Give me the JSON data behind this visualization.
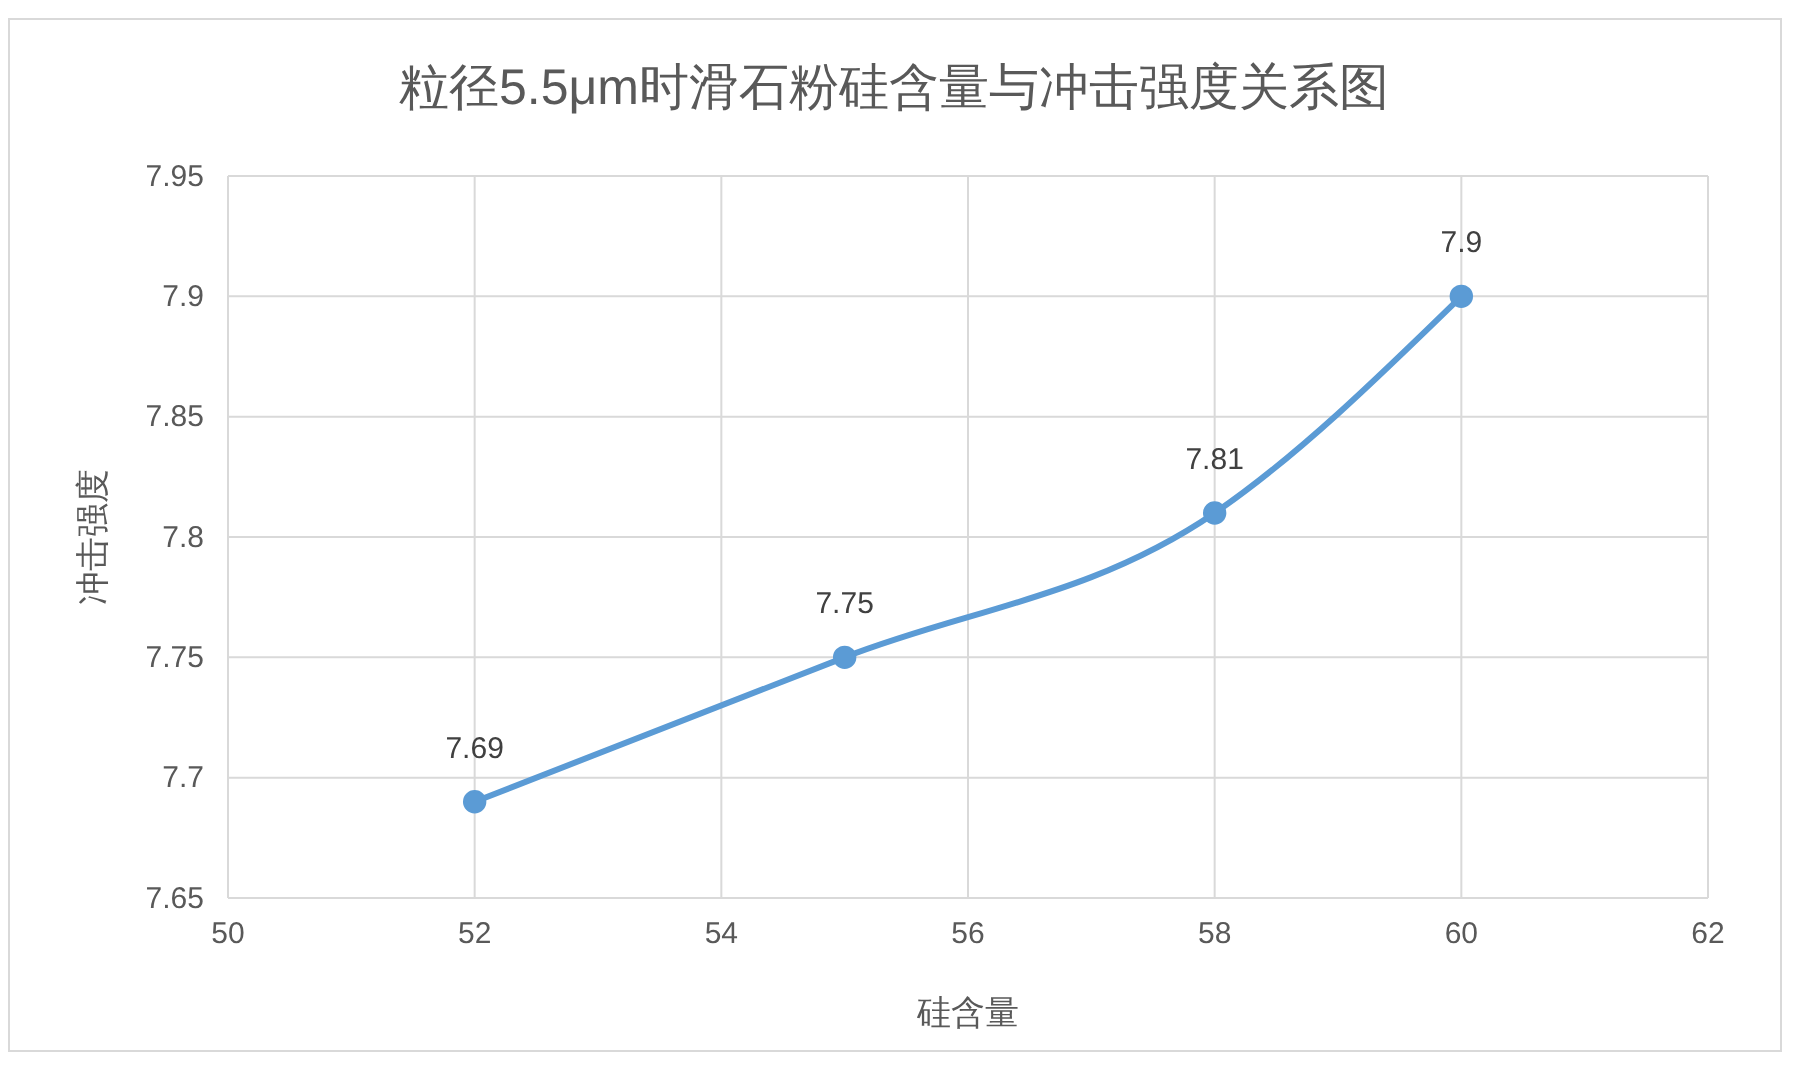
{
  "chart_data": {
    "type": "line",
    "title": "粒径5.5μm时滑石粉硅含量与冲击强度关系图",
    "xlabel": "硅含量",
    "ylabel": "冲击强度",
    "x": [
      52,
      55,
      58,
      60
    ],
    "series": [
      {
        "color": "#5b9bd5",
        "values": [
          7.69,
          7.75,
          7.81,
          7.9
        ]
      }
    ],
    "xlim": [
      50,
      62
    ],
    "xticks": [
      50,
      52,
      54,
      56,
      58,
      60,
      62
    ],
    "ylim": [
      7.65,
      7.95
    ],
    "yticks": [
      7.65,
      7.7,
      7.75,
      7.8,
      7.85,
      7.9,
      7.95
    ],
    "grid": true,
    "marker": "circle",
    "line_style": "solid",
    "data_labels": true
  }
}
